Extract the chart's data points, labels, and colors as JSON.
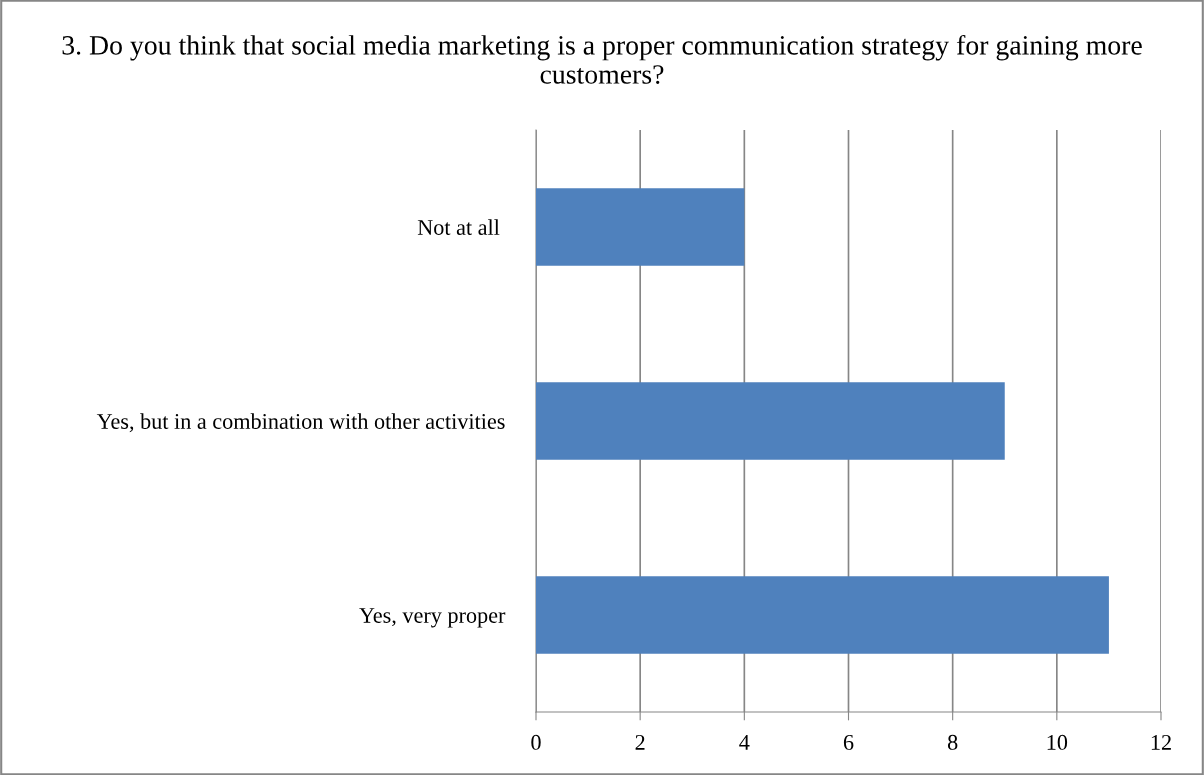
{
  "chart_data": {
    "type": "bar",
    "orientation": "horizontal",
    "title": "3. Do you think that social media marketing is a proper communication strategy for gaining more customers?",
    "categories": [
      "Not at all ",
      "Yes, but in a combination with other activities",
      "Yes, very proper"
    ],
    "values": [
      4,
      9,
      11
    ],
    "color": "#4f81bd",
    "xlim": [
      0,
      12
    ],
    "xticks": [
      0,
      2,
      4,
      6,
      8,
      10,
      12
    ],
    "grid": "x",
    "legend": false
  }
}
